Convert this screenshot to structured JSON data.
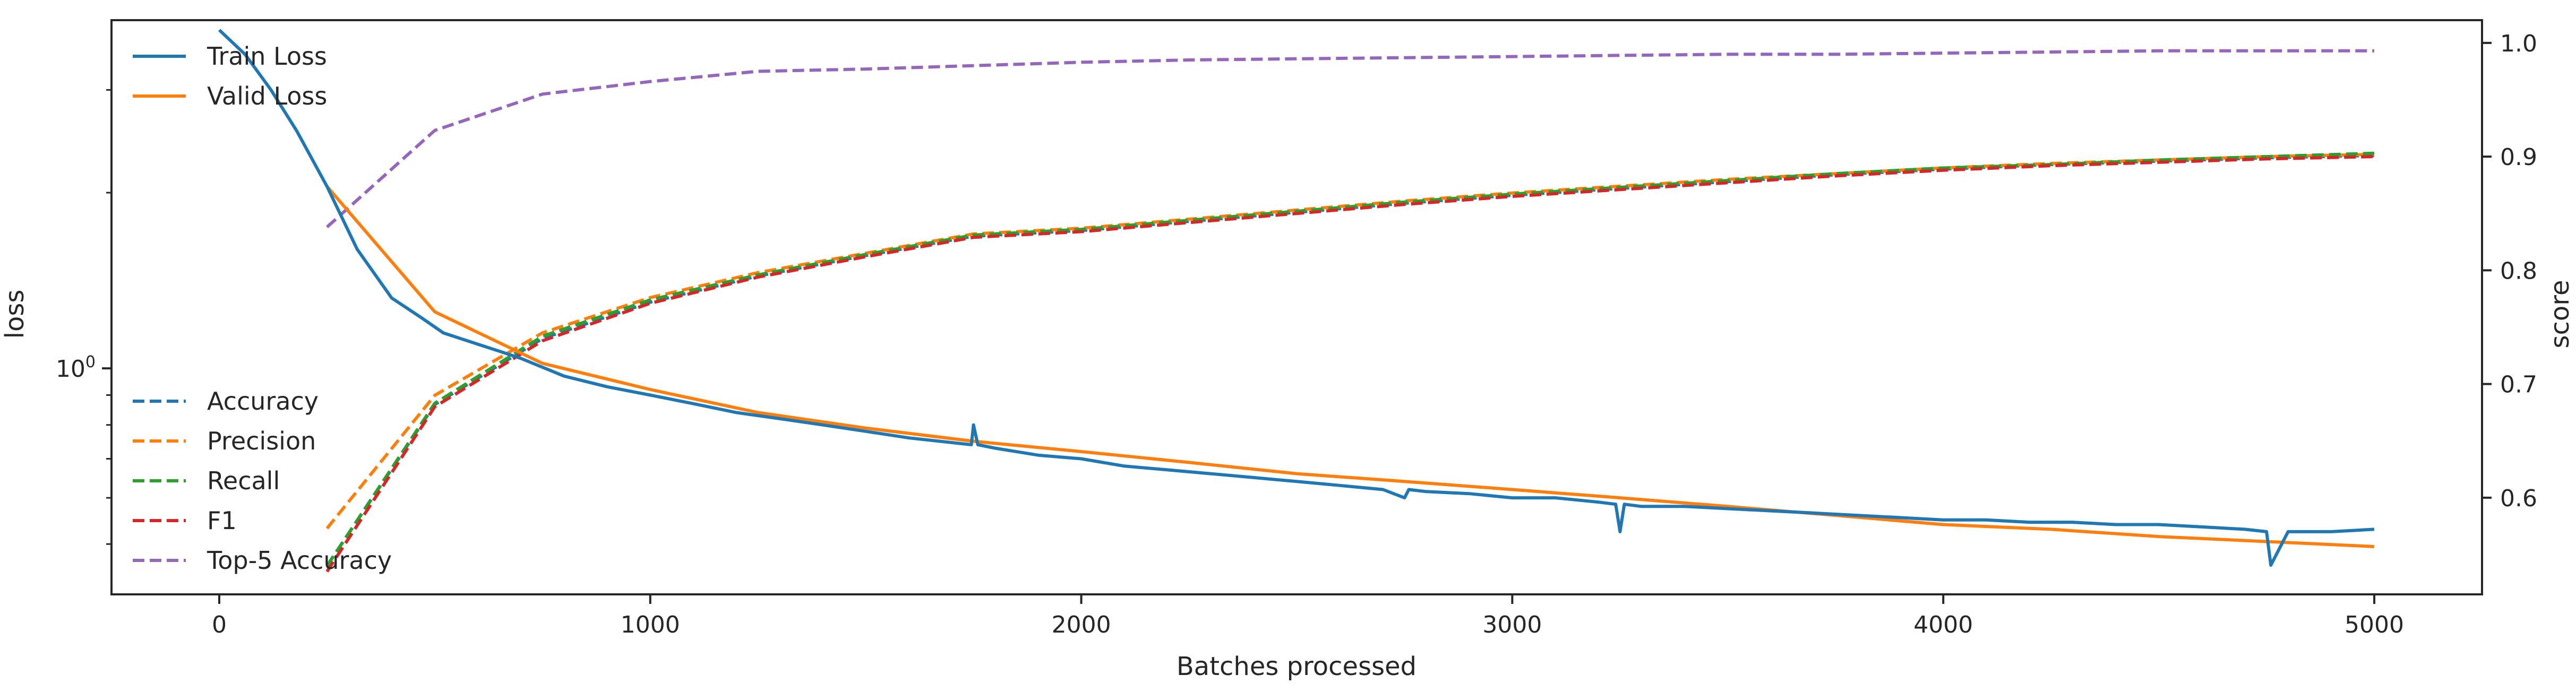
{
  "chart_data": {
    "type": "line",
    "xlabel": "Batches processed",
    "ylabel_left": "loss",
    "ylabel_right": "score",
    "x_ticks": [
      0,
      1000,
      2000,
      3000,
      4000,
      5000
    ],
    "x_range": [
      -250,
      5250
    ],
    "left_axis": {
      "scale": "log",
      "range": [
        0.41,
        3.95
      ],
      "tick_labels": [
        {
          "value": 1.0,
          "base": "10",
          "exponent": "0"
        }
      ]
    },
    "right_axis": {
      "range": [
        0.515,
        1.02
      ],
      "ticks": [
        0.6,
        0.7,
        0.8,
        0.9,
        1.0
      ],
      "tick_labels": [
        "0.6",
        "0.7",
        "0.8",
        "0.9",
        "1.0"
      ]
    },
    "loss_series": [
      {
        "name": "Train Loss",
        "color": "#1f77b4",
        "style": "solid",
        "x": [
          0,
          60,
          120,
          180,
          250,
          320,
          400,
          470,
          520,
          600,
          650,
          700,
          800,
          900,
          1000,
          1100,
          1200,
          1300,
          1400,
          1500,
          1600,
          1745,
          1750,
          1760,
          1800,
          1900,
          2000,
          2100,
          2200,
          2300,
          2400,
          2500,
          2600,
          2700,
          2750,
          2760,
          2800,
          2900,
          3000,
          3100,
          3200,
          3240,
          3250,
          3260,
          3300,
          3400,
          3500,
          3600,
          3700,
          3800,
          3900,
          4000,
          4100,
          4200,
          4300,
          4400,
          4500,
          4600,
          4700,
          4750,
          4760,
          4800,
          4900,
          5000
        ],
        "y": [
          3.8,
          3.45,
          3.0,
          2.55,
          2.05,
          1.6,
          1.32,
          1.22,
          1.15,
          1.1,
          1.07,
          1.04,
          0.97,
          0.93,
          0.9,
          0.87,
          0.84,
          0.82,
          0.8,
          0.78,
          0.76,
          0.74,
          0.8,
          0.74,
          0.73,
          0.71,
          0.7,
          0.68,
          0.67,
          0.66,
          0.65,
          0.64,
          0.63,
          0.62,
          0.6,
          0.62,
          0.615,
          0.61,
          0.6,
          0.6,
          0.59,
          0.585,
          0.525,
          0.585,
          0.58,
          0.58,
          0.575,
          0.57,
          0.565,
          0.56,
          0.555,
          0.55,
          0.55,
          0.545,
          0.545,
          0.54,
          0.54,
          0.535,
          0.53,
          0.525,
          0.46,
          0.525,
          0.525,
          0.53
        ]
      },
      {
        "name": "Valid Loss",
        "color": "#ff7f0e",
        "style": "solid",
        "x": [
          250,
          500,
          750,
          1000,
          1250,
          1500,
          1750,
          2000,
          2250,
          2500,
          2750,
          3000,
          3250,
          3500,
          3750,
          4000,
          4250,
          4500,
          4750,
          5000
        ],
        "y": [
          2.05,
          1.25,
          1.02,
          0.92,
          0.84,
          0.79,
          0.75,
          0.72,
          0.69,
          0.66,
          0.64,
          0.62,
          0.6,
          0.58,
          0.56,
          0.54,
          0.53,
          0.515,
          0.505,
          0.495
        ]
      }
    ],
    "score_series": [
      {
        "name": "Accuracy",
        "color": "#1f77b4",
        "style": "dashed",
        "x": [
          250,
          500,
          750,
          1000,
          1250,
          1500,
          1750,
          2000,
          2250,
          2500,
          2750,
          3000,
          3250,
          3500,
          3750,
          4000,
          4250,
          4500,
          4750,
          5000
        ],
        "y": [
          0.54,
          0.682,
          0.74,
          0.772,
          0.795,
          0.813,
          0.83,
          0.835,
          0.843,
          0.851,
          0.859,
          0.866,
          0.872,
          0.878,
          0.884,
          0.889,
          0.893,
          0.896,
          0.899,
          0.901
        ]
      },
      {
        "name": "Precision",
        "color": "#ff7f0e",
        "style": "dashed",
        "x": [
          250,
          500,
          750,
          1000,
          1250,
          1500,
          1750,
          2000,
          2250,
          2500,
          2750,
          3000,
          3250,
          3500,
          3750,
          4000,
          4250,
          4500,
          4750,
          5000
        ],
        "y": [
          0.573,
          0.69,
          0.745,
          0.776,
          0.798,
          0.815,
          0.832,
          0.837,
          0.845,
          0.853,
          0.861,
          0.868,
          0.874,
          0.88,
          0.885,
          0.89,
          0.894,
          0.897,
          0.9,
          0.902
        ]
      },
      {
        "name": "Recall",
        "color": "#2ca02c",
        "style": "dashed",
        "x": [
          250,
          500,
          750,
          1000,
          1250,
          1500,
          1750,
          2000,
          2250,
          2500,
          2750,
          3000,
          3250,
          3500,
          3750,
          4000,
          4250,
          4500,
          4750,
          5000
        ],
        "y": [
          0.54,
          0.683,
          0.742,
          0.774,
          0.796,
          0.814,
          0.831,
          0.836,
          0.844,
          0.852,
          0.86,
          0.867,
          0.873,
          0.879,
          0.885,
          0.89,
          0.893,
          0.897,
          0.9,
          0.903
        ]
      },
      {
        "name": "F1",
        "color": "#d62728",
        "style": "dashed",
        "x": [
          250,
          500,
          750,
          1000,
          1250,
          1500,
          1750,
          2000,
          2250,
          2500,
          2750,
          3000,
          3250,
          3500,
          3750,
          4000,
          4250,
          4500,
          4750,
          5000
        ],
        "y": [
          0.535,
          0.68,
          0.738,
          0.771,
          0.794,
          0.812,
          0.829,
          0.834,
          0.842,
          0.85,
          0.858,
          0.865,
          0.871,
          0.877,
          0.883,
          0.888,
          0.892,
          0.895,
          0.898,
          0.9
        ]
      },
      {
        "name": "Top-5 Accuracy",
        "color": "#9467bd",
        "style": "dashed",
        "x": [
          250,
          500,
          750,
          1000,
          1250,
          1500,
          1750,
          2000,
          2250,
          2500,
          2750,
          3000,
          3250,
          3500,
          3750,
          4000,
          4250,
          4500,
          4750,
          5000
        ],
        "y": [
          0.838,
          0.923,
          0.955,
          0.966,
          0.975,
          0.977,
          0.98,
          0.983,
          0.985,
          0.986,
          0.987,
          0.988,
          0.989,
          0.99,
          0.99,
          0.991,
          0.992,
          0.993,
          0.993,
          0.993
        ]
      }
    ],
    "legends": {
      "top_left": [
        "Train Loss",
        "Valid Loss"
      ],
      "bottom_left": [
        "Accuracy",
        "Precision",
        "Recall",
        "F1",
        "Top-5 Accuracy"
      ]
    }
  }
}
